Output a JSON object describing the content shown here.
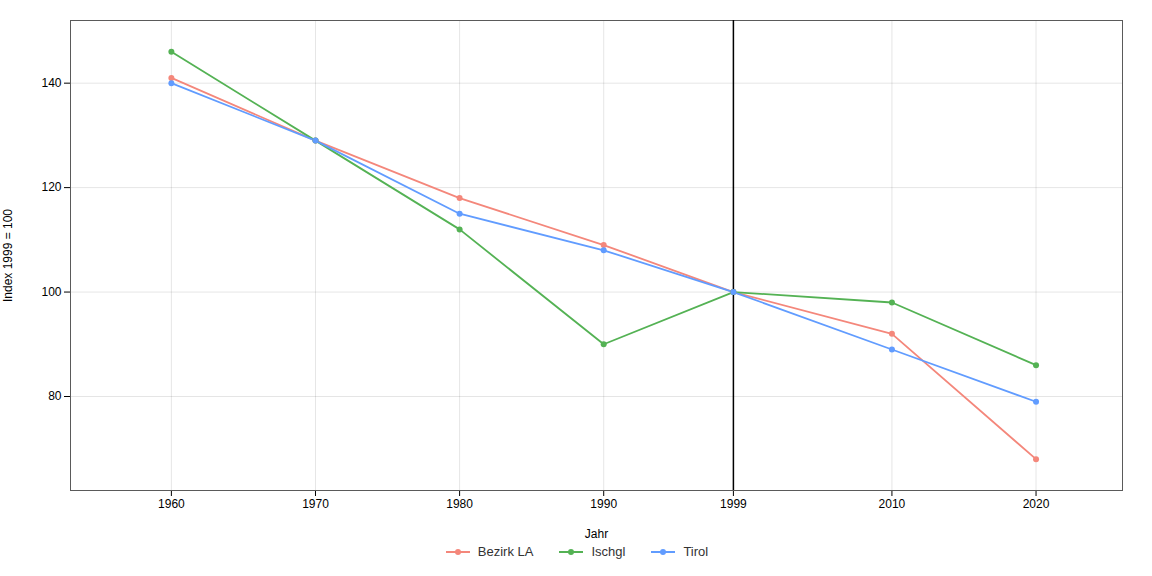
{
  "chart_data": {
    "type": "line",
    "x": [
      1960,
      1970,
      1980,
      1990,
      1999,
      2010,
      2020
    ],
    "series": [
      {
        "name": "Bezirk LA",
        "color": "#F4877B",
        "values": [
          141,
          129,
          118,
          109,
          100,
          92,
          68
        ]
      },
      {
        "name": "Ischgl",
        "color": "#54B254",
        "values": [
          146,
          129,
          112,
          90,
          100,
          98,
          86
        ]
      },
      {
        "name": "Tirol",
        "color": "#619CFF",
        "values": [
          140,
          129,
          115,
          108,
          100,
          89,
          79
        ]
      }
    ],
    "vline": 1999,
    "xlabel": "Jahr",
    "ylabel": "Index 1999 = 100",
    "xlim": [
      1953,
      2026
    ],
    "ylim": [
      62,
      152
    ],
    "xticks": [
      1960,
      1970,
      1980,
      1990,
      1999,
      2010,
      2020
    ],
    "yticks": [
      80,
      100,
      120,
      140
    ],
    "grid": true,
    "legend": "bottom",
    "marker": "circle"
  }
}
